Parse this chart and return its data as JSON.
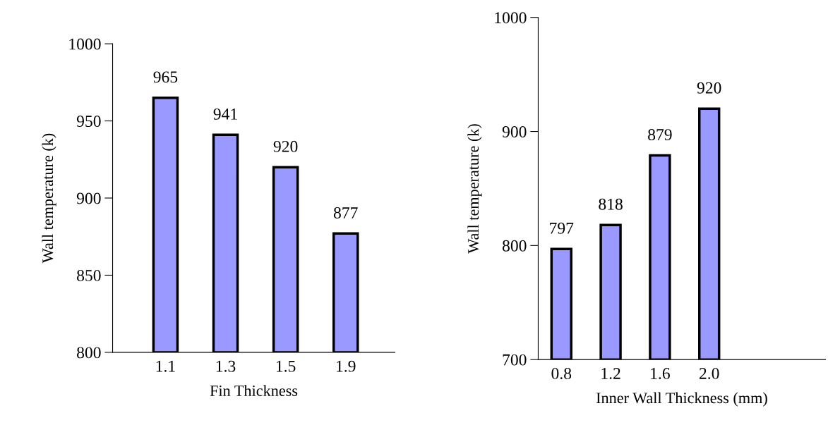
{
  "chart_data": [
    {
      "type": "bar",
      "xlabel": "Fin Thickness",
      "ylabel": "Wall temperature (k)",
      "categories": [
        "1.1",
        "1.3",
        "1.5",
        "1.9"
      ],
      "values": [
        965,
        941,
        920,
        877
      ],
      "color": "#9999ff",
      "ylim": [
        800,
        1000
      ],
      "yticks": [
        800,
        850,
        900,
        950,
        1000
      ],
      "data_labels": true,
      "grid": false,
      "legend": false
    },
    {
      "type": "bar",
      "xlabel": "Inner Wall Thickness (mm)",
      "ylabel": "Wall temperature (k)",
      "categories": [
        "0.8",
        "1.2",
        "1.6",
        "2.0"
      ],
      "values": [
        797,
        818,
        879,
        920
      ],
      "color": "#9999ff",
      "ylim": [
        700,
        1000
      ],
      "yticks": [
        700,
        800,
        900,
        1000
      ],
      "data_labels": true,
      "grid": false,
      "legend": false
    }
  ]
}
